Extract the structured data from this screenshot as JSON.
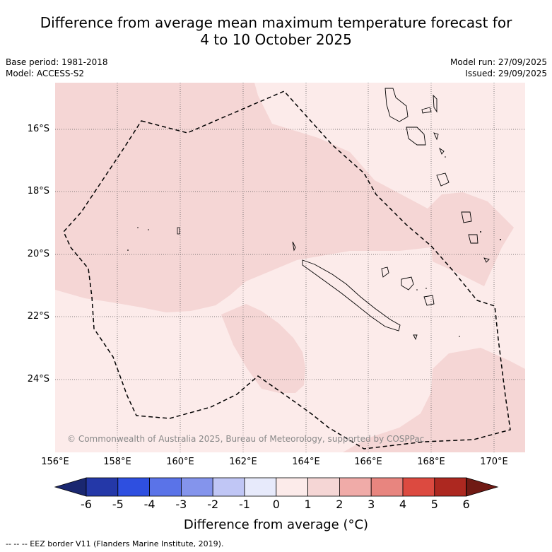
{
  "title_line1": "Difference from average mean maximum temperature forecast for",
  "title_line2": "4 to 10 October 2025",
  "meta": {
    "base_period": "Base period: 1981-2018",
    "model": "Model: ACCESS-S2",
    "model_run": "Model run: 27/09/2025",
    "issued": "Issued: 29/09/2025"
  },
  "map": {
    "lat_labels": [
      "16°S",
      "18°S",
      "20°S",
      "22°S",
      "24°S"
    ],
    "lon_labels": [
      "156°E",
      "158°E",
      "160°E",
      "162°E",
      "164°E",
      "166°E",
      "168°E",
      "170°E"
    ],
    "copyright": "© Commonwealth of Australia 2025, Bureau of Meteorology, supported by COSPPac",
    "colors": {
      "class_0_1": "#fcebea",
      "class_1_2": "#f5d6d5",
      "coast": "#000000",
      "grid": "#555555"
    }
  },
  "colorbar": {
    "labels": [
      "-6",
      "-5",
      "-4",
      "-3",
      "-2",
      "-1",
      "0",
      "1",
      "2",
      "3",
      "4",
      "5",
      "6"
    ],
    "colors": [
      "#1a2770",
      "#2438a8",
      "#2e4fe0",
      "#5a73e8",
      "#8494ec",
      "#c0c6f5",
      "#e7eafb",
      "#fcebea",
      "#f5d6d5",
      "#f0aba8",
      "#e8857f",
      "#dc4a40",
      "#ad2820",
      "#701a14"
    ],
    "title": "Difference from average (°C)"
  },
  "footnote": "-- -- -- EEZ border V11 (Flanders Marine Institute, 2019)."
}
